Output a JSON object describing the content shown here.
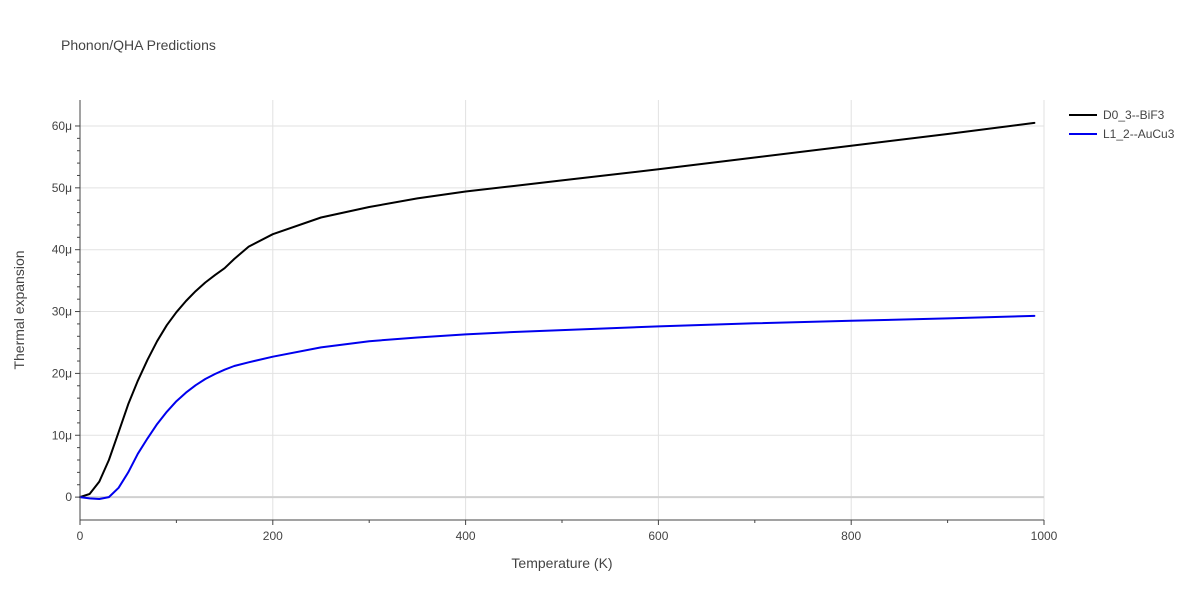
{
  "chart_data": {
    "type": "line",
    "title": "Phonon/QHA Predictions",
    "xlabel": "Temperature (K)",
    "ylabel": "Thermal expansion",
    "xlim": [
      0,
      1000
    ],
    "ylim": [
      -3.7e-06,
      6.42e-05
    ],
    "x_ticks": [
      {
        "value": 0,
        "label": "0"
      },
      {
        "value": 200,
        "label": "200"
      },
      {
        "value": 400,
        "label": "400"
      },
      {
        "value": 600,
        "label": "600"
      },
      {
        "value": 800,
        "label": "800"
      },
      {
        "value": 1000,
        "label": "1000"
      }
    ],
    "y_ticks": [
      {
        "value": 0,
        "label": "0"
      },
      {
        "value": 1e-05,
        "label": "10μ"
      },
      {
        "value": 2e-05,
        "label": "20μ"
      },
      {
        "value": 3e-05,
        "label": "30μ"
      },
      {
        "value": 4e-05,
        "label": "40μ"
      },
      {
        "value": 5e-05,
        "label": "50μ"
      },
      {
        "value": 6e-05,
        "label": "60μ"
      }
    ],
    "grid": true,
    "legend_position": "top-right",
    "series": [
      {
        "name": "D0_3--BiF3",
        "color": "#000000",
        "x": [
          0,
          10,
          20,
          30,
          40,
          50,
          60,
          70,
          80,
          90,
          100,
          110,
          120,
          130,
          140,
          150,
          160,
          175,
          200,
          250,
          300,
          350,
          400,
          450,
          500,
          600,
          700,
          800,
          900,
          990
        ],
        "y": [
          0,
          5e-07,
          2.5e-06,
          6e-06,
          1.05e-05,
          1.5e-05,
          1.88e-05,
          2.22e-05,
          2.52e-05,
          2.78e-05,
          2.99e-05,
          3.17e-05,
          3.33e-05,
          3.47e-05,
          3.59e-05,
          3.7e-05,
          3.85e-05,
          4.05e-05,
          4.25e-05,
          4.52e-05,
          4.69e-05,
          4.83e-05,
          4.94e-05,
          5.03e-05,
          5.12e-05,
          5.3e-05,
          5.49e-05,
          5.68e-05,
          5.87e-05,
          6.05e-05
        ]
      },
      {
        "name": "L1_2--AuCu3",
        "color": "#0000ee",
        "x": [
          0,
          10,
          20,
          30,
          40,
          50,
          60,
          70,
          80,
          90,
          100,
          110,
          120,
          130,
          140,
          150,
          160,
          175,
          200,
          250,
          300,
          350,
          400,
          450,
          500,
          600,
          700,
          800,
          900,
          990
        ],
        "y": [
          0,
          -2e-07,
          -3e-07,
          0,
          1.5e-06,
          4e-06,
          7e-06,
          9.5e-06,
          1.18e-05,
          1.38e-05,
          1.55e-05,
          1.69e-05,
          1.81e-05,
          1.91e-05,
          1.99e-05,
          2.06e-05,
          2.12e-05,
          2.18e-05,
          2.27e-05,
          2.42e-05,
          2.52e-05,
          2.58e-05,
          2.63e-05,
          2.67e-05,
          2.7e-05,
          2.76e-05,
          2.81e-05,
          2.85e-05,
          2.89e-05,
          2.93e-05
        ]
      }
    ]
  }
}
